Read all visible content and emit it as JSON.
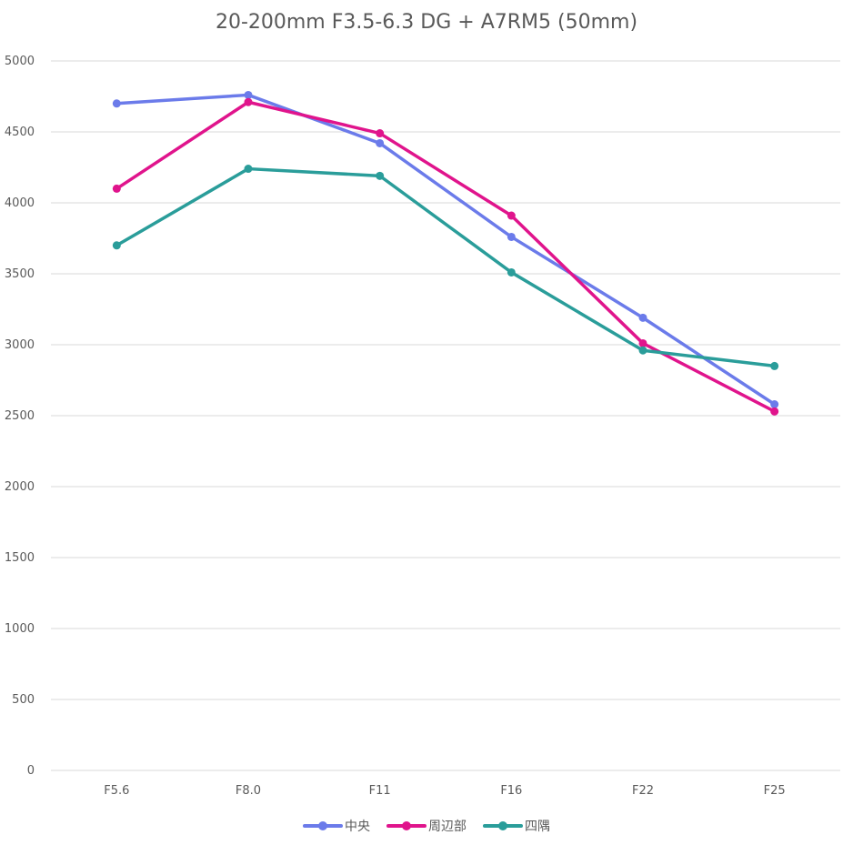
{
  "chart_data": {
    "type": "line",
    "title": "20-200mm F3.5-6.3 DG + A7RM5 (50mm)",
    "xlabel": "",
    "ylabel": "",
    "categories": [
      "F5.6",
      "F8.0",
      "F11",
      "F16",
      "F22",
      "F25"
    ],
    "ylim": [
      0,
      5000
    ],
    "yticks": [
      0,
      500,
      1000,
      1500,
      2000,
      2500,
      3000,
      3500,
      4000,
      4500,
      5000
    ],
    "grid": true,
    "legend_position": "bottom",
    "series": [
      {
        "name": "中央",
        "color": "#6b7bea",
        "values": [
          4700,
          4760,
          4420,
          3760,
          3190,
          2580
        ]
      },
      {
        "name": "周辺部",
        "color": "#e0148c",
        "values": [
          4100,
          4710,
          4490,
          3910,
          3010,
          2530
        ]
      },
      {
        "name": "四隅",
        "color": "#2a9d9a",
        "values": [
          3700,
          4240,
          4190,
          3510,
          2960,
          2850
        ]
      }
    ]
  }
}
